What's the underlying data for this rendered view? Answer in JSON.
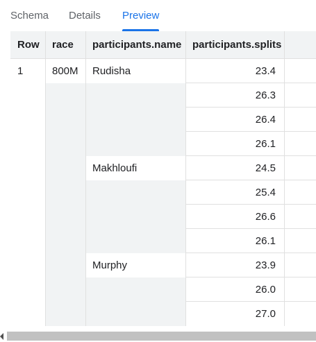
{
  "tabs": [
    {
      "label": "Schema",
      "active": false
    },
    {
      "label": "Details",
      "active": false
    },
    {
      "label": "Preview",
      "active": true
    }
  ],
  "table": {
    "headers": [
      "Row",
      "race",
      "participants.name",
      "participants.splits"
    ],
    "rows": [
      {
        "row": "1",
        "race": "800M",
        "name": "Rudisha",
        "split": "23.4"
      },
      {
        "row": "",
        "race": "",
        "name": "",
        "split": "26.3"
      },
      {
        "row": "",
        "race": "",
        "name": "",
        "split": "26.4"
      },
      {
        "row": "",
        "race": "",
        "name": "",
        "split": "26.1"
      },
      {
        "row": "",
        "race": "",
        "name": "Makhloufi",
        "split": "24.5"
      },
      {
        "row": "",
        "race": "",
        "name": "",
        "split": "25.4"
      },
      {
        "row": "",
        "race": "",
        "name": "",
        "split": "26.6"
      },
      {
        "row": "",
        "race": "",
        "name": "",
        "split": "26.1"
      },
      {
        "row": "",
        "race": "",
        "name": "Murphy",
        "split": "23.9"
      },
      {
        "row": "",
        "race": "",
        "name": "",
        "split": "26.0"
      },
      {
        "row": "",
        "race": "",
        "name": "",
        "split": "27.0"
      }
    ]
  },
  "colors": {
    "accent": "#1a73e8",
    "header_bg": "#f1f3f4",
    "border": "#e0e0e0"
  },
  "icons": {
    "scroll_left": "scroll-left-arrow-icon"
  }
}
